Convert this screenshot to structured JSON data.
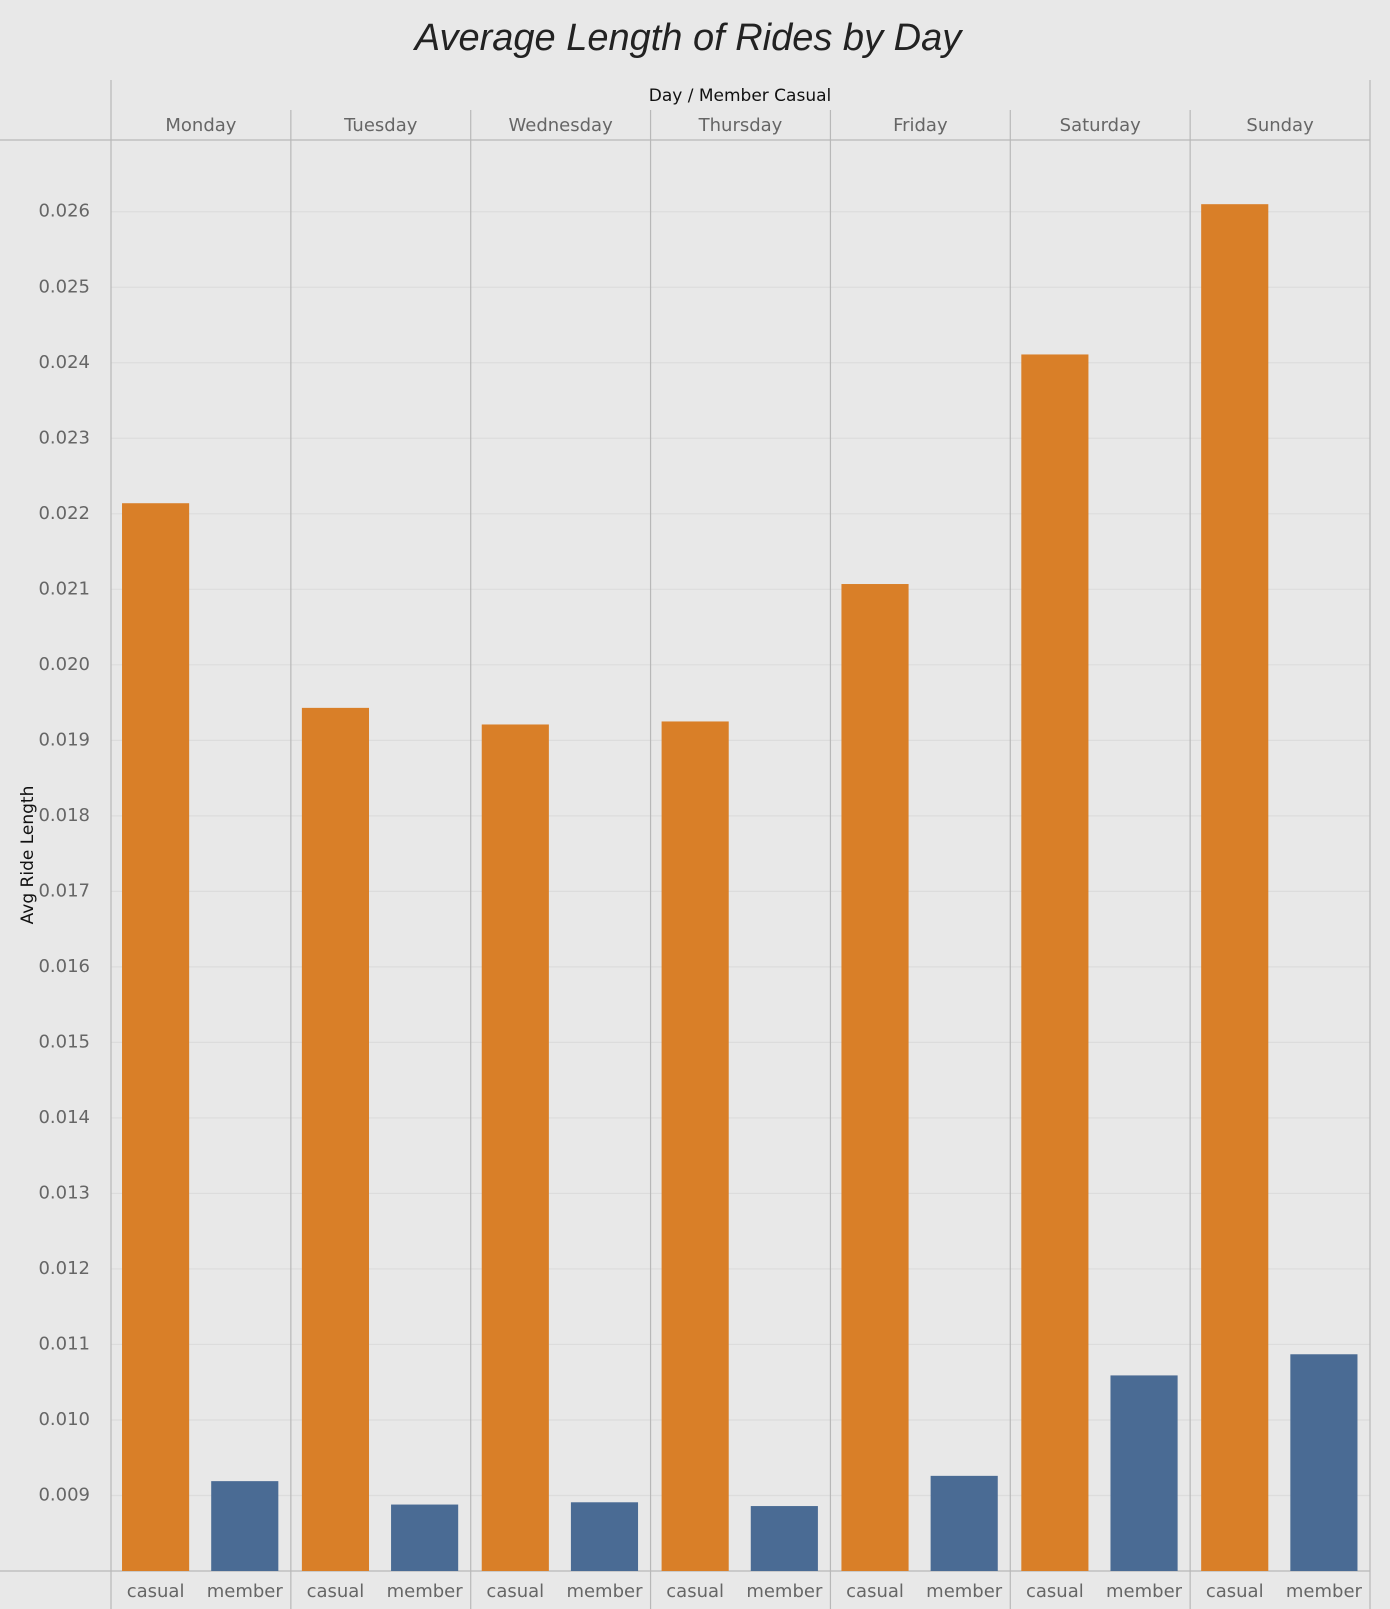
{
  "chart_data": {
    "type": "bar",
    "title": "Average Length of Rides by Day",
    "column_header": "Day / Member Casual",
    "y_label": "Avg Ride Length",
    "categories": [
      "Monday",
      "Tuesday",
      "Wednesday",
      "Thursday",
      "Friday",
      "Saturday",
      "Sunday"
    ],
    "series": [
      {
        "name": "casual",
        "color": "#d97f28",
        "values": [
          0.02214,
          0.01943,
          0.01921,
          0.01925,
          0.02107,
          0.02411,
          0.0261
        ]
      },
      {
        "name": "member",
        "color": "#4a6b94",
        "values": [
          0.00919,
          0.00888,
          0.00891,
          0.00886,
          0.00926,
          0.01059,
          0.01087
        ]
      }
    ],
    "ylim": [
      0.008,
      0.02695
    ],
    "yticks": [
      0.009,
      {
        "value": 0.01,
        "label": "0.010"
      },
      0.011,
      0.012,
      0.013,
      0.014,
      0.015,
      0.016,
      0.017,
      0.018,
      0.019,
      {
        "value": 0.02,
        "label": "0.020"
      },
      0.021,
      0.022,
      0.023,
      0.024,
      0.025,
      0.026
    ],
    "grid": true
  }
}
